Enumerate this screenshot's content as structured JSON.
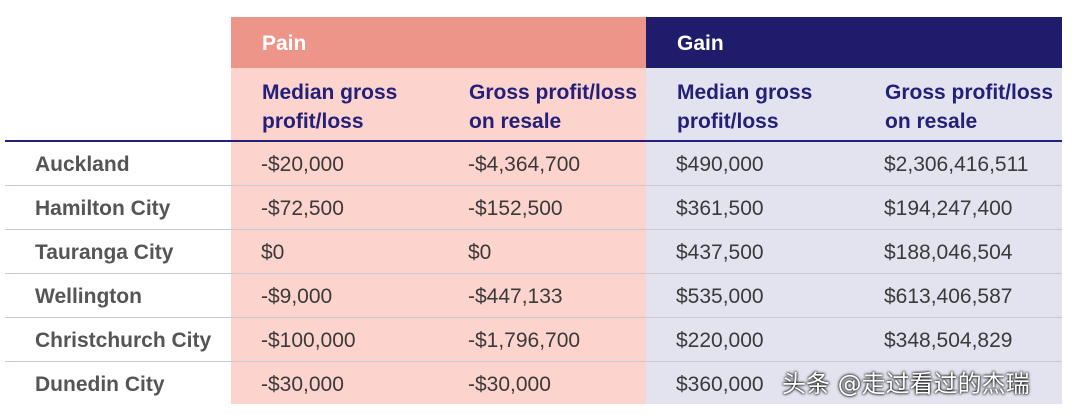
{
  "groups": {
    "pain": "Pain",
    "gain": "Gain"
  },
  "columns": {
    "pain_median": "Median gross\nprofit/loss",
    "pain_gross": "Gross profit/loss\non resale",
    "gain_median": "Median gross\nprofit/loss",
    "gain_gross": "Gross profit/loss\non resale"
  },
  "rows": [
    {
      "city": "Auckland",
      "pain_median": "-$20,000",
      "pain_gross": "-$4,364,700",
      "gain_median": "$490,000",
      "gain_gross": "$2,306,416,511"
    },
    {
      "city": "Hamilton City",
      "pain_median": "-$72,500",
      "pain_gross": "-$152,500",
      "gain_median": "$361,500",
      "gain_gross": "$194,247,400"
    },
    {
      "city": "Tauranga City",
      "pain_median": "$0",
      "pain_gross": "$0",
      "gain_median": "$437,500",
      "gain_gross": "$188,046,504"
    },
    {
      "city": "Wellington",
      "pain_median": "-$9,000",
      "pain_gross": "-$447,133",
      "gain_median": "$535,000",
      "gain_gross": "$613,406,587"
    },
    {
      "city": "Christchurch City",
      "pain_median": "-$100,000",
      "pain_gross": "-$1,796,700",
      "gain_median": "$220,000",
      "gain_gross": "$348,504,829"
    },
    {
      "city": "Dunedin City",
      "pain_median": "-$30,000",
      "pain_gross": "-$30,000",
      "gain_median": "$360,000",
      "gain_gross": ""
    }
  ],
  "watermark": "头条 @走过看过的杰瑞",
  "colors": {
    "pain_header": "#ee958a",
    "pain_body": "#fdd3cd",
    "gain_header": "#1f1c6b",
    "gain_body": "#e3e3ef",
    "heading_text": "#24207a"
  }
}
